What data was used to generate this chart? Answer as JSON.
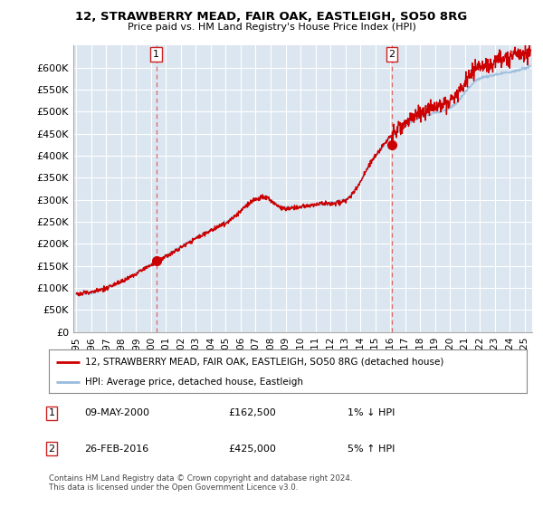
{
  "title": "12, STRAWBERRY MEAD, FAIR OAK, EASTLEIGH, SO50 8RG",
  "subtitle": "Price paid vs. HM Land Registry's House Price Index (HPI)",
  "ylabel_ticks": [
    "£0",
    "£50K",
    "£100K",
    "£150K",
    "£200K",
    "£250K",
    "£300K",
    "£350K",
    "£400K",
    "£450K",
    "£500K",
    "£550K",
    "£600K"
  ],
  "ytick_values": [
    0,
    50000,
    100000,
    150000,
    200000,
    250000,
    300000,
    350000,
    400000,
    450000,
    500000,
    550000,
    600000
  ],
  "ylim": [
    0,
    650000
  ],
  "xlim_start": 1994.8,
  "xlim_end": 2025.5,
  "background_color": "#ffffff",
  "plot_bg_color": "#dce6f0",
  "grid_color": "#ffffff",
  "legend_label_red": "12, STRAWBERRY MEAD, FAIR OAK, EASTLEIGH, SO50 8RG (detached house)",
  "legend_label_blue": "HPI: Average price, detached house, Eastleigh",
  "transaction1_x": 2000.35,
  "transaction1_y": 162500,
  "transaction2_x": 2016.12,
  "transaction2_y": 425000,
  "annotation1_date": "09-MAY-2000",
  "annotation1_price": "£162,500",
  "annotation1_hpi": "1% ↓ HPI",
  "annotation2_date": "26-FEB-2016",
  "annotation2_price": "£425,000",
  "annotation2_hpi": "5% ↑ HPI",
  "footer_text": "Contains HM Land Registry data © Crown copyright and database right 2024.\nThis data is licensed under the Open Government Licence v3.0.",
  "red_color": "#cc0000",
  "blue_color": "#99bbdd",
  "dashed_line_color": "#dd4444"
}
